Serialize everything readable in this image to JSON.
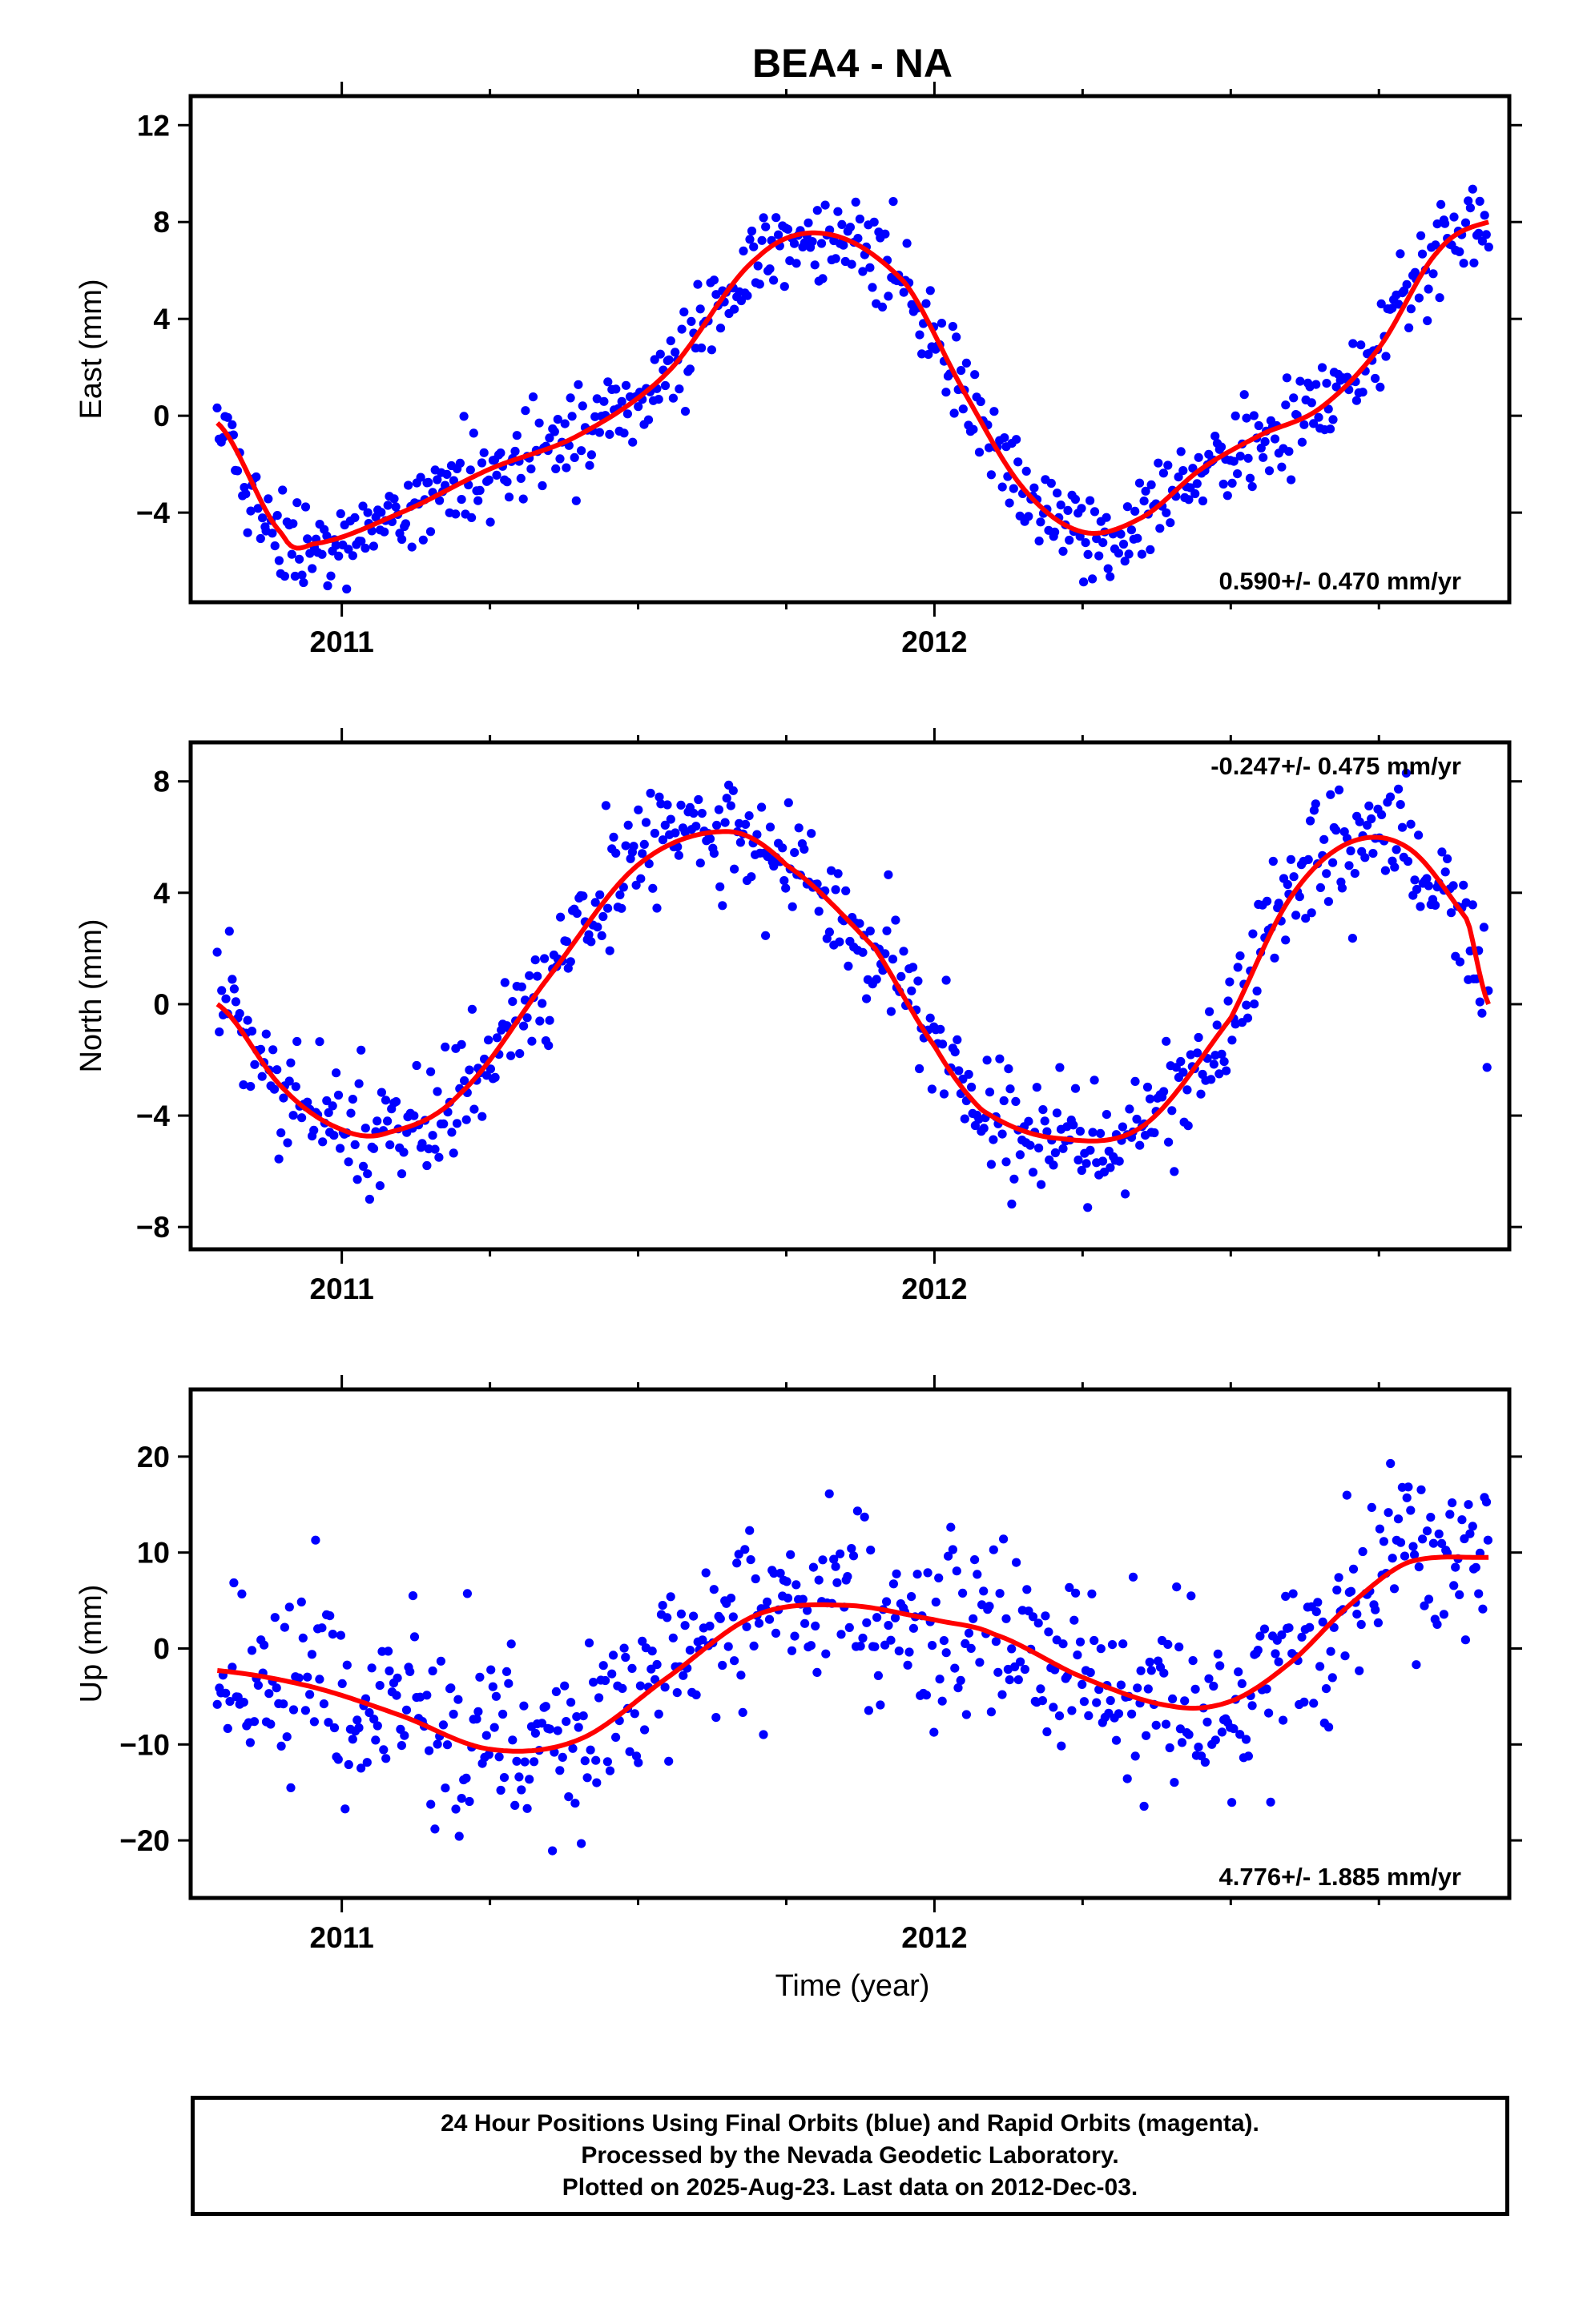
{
  "figure": {
    "title": "BEA4 - NA",
    "xlabel": "Time (year)"
  },
  "footer": {
    "lines": [
      "24 Hour Positions Using Final Orbits (blue) and Rapid Orbits (magenta).",
      "Processed by the Nevada Geodetic Laboratory.",
      "Plotted on 2025-Aug-23. Last data on 2012-Dec-03."
    ]
  },
  "colors": {
    "points": "#0000ff",
    "fit": "#ff0000",
    "frame": "#000000"
  },
  "chart_data": [
    {
      "type": "scatter",
      "name": "east",
      "ylabel": "East (mm)",
      "rate_text": "0.590+/- 0.470 mm/yr",
      "rate_position": "bottom-right",
      "xlim": [
        2010.745,
        2012.97
      ],
      "ylim": [
        -7.7,
        13.2
      ],
      "yticks": [
        -4,
        0,
        4,
        8,
        12
      ],
      "xticks": [
        2011,
        2012
      ],
      "xtick_labels": [
        "2011",
        "2012"
      ],
      "point_noise_mm": 0.9,
      "fit_curve": {
        "x": [
          2010.79,
          2010.9,
          2010.95,
          2011.1,
          2011.25,
          2011.4,
          2011.55,
          2011.7,
          2011.82,
          2011.95,
          2012.05,
          2012.15,
          2012.25,
          2012.35,
          2012.45,
          2012.55,
          2012.65,
          2012.75,
          2012.85,
          2012.935
        ],
        "y": [
          -0.3,
          -4.9,
          -5.3,
          -4.0,
          -2.2,
          -0.8,
          1.8,
          6.5,
          7.5,
          5.5,
          1.0,
          -3.0,
          -4.8,
          -4.2,
          -2.2,
          -0.8,
          0.3,
          2.8,
          6.8,
          8.0
        ]
      }
    },
    {
      "type": "scatter",
      "name": "north",
      "ylabel": "North (mm)",
      "rate_text": "-0.247+/- 0.475 mm/yr",
      "rate_position": "top-right",
      "xlim": [
        2010.745,
        2012.97
      ],
      "ylim": [
        -8.8,
        9.4
      ],
      "yticks": [
        -8,
        -4,
        0,
        4,
        8
      ],
      "xticks": [
        2011,
        2012
      ],
      "xtick_labels": [
        "2011",
        "2012"
      ],
      "point_noise_mm": 1.0,
      "fit_curve": {
        "x": [
          2010.79,
          2010.9,
          2011.0,
          2011.08,
          2011.2,
          2011.35,
          2011.5,
          2011.65,
          2011.75,
          2011.9,
          2012.0,
          2012.08,
          2012.2,
          2012.35,
          2012.5,
          2012.6,
          2012.7,
          2012.8,
          2012.9,
          2012.935
        ],
        "y": [
          0.0,
          -3.0,
          -4.5,
          -4.6,
          -3.2,
          1.0,
          5.0,
          6.2,
          5.0,
          2.0,
          -1.5,
          -3.8,
          -4.8,
          -4.4,
          -0.5,
          3.8,
          5.8,
          5.6,
          3.0,
          0.0
        ]
      }
    },
    {
      "type": "scatter",
      "name": "up",
      "ylabel": "Up (mm)",
      "rate_text": "4.776+/- 1.885 mm/yr",
      "rate_position": "bottom-right",
      "xlim": [
        2010.745,
        2012.97
      ],
      "ylim": [
        -26,
        27
      ],
      "yticks": [
        -20,
        -10,
        0,
        10,
        20
      ],
      "xticks": [
        2011,
        2012
      ],
      "xtick_labels": [
        "2011",
        "2012"
      ],
      "point_noise_mm": 4.5,
      "fit_curve": {
        "x": [
          2010.79,
          2010.95,
          2011.1,
          2011.25,
          2011.4,
          2011.55,
          2011.7,
          2011.85,
          2012.0,
          2012.1,
          2012.25,
          2012.4,
          2012.5,
          2012.6,
          2012.7,
          2012.8,
          2012.935
        ],
        "y": [
          -2.3,
          -4.0,
          -7.0,
          -10.5,
          -9.5,
          -3.0,
          3.5,
          4.5,
          3.0,
          1.5,
          -3.0,
          -6.0,
          -5.5,
          -1.5,
          4.5,
          9.0,
          9.5
        ]
      }
    }
  ]
}
